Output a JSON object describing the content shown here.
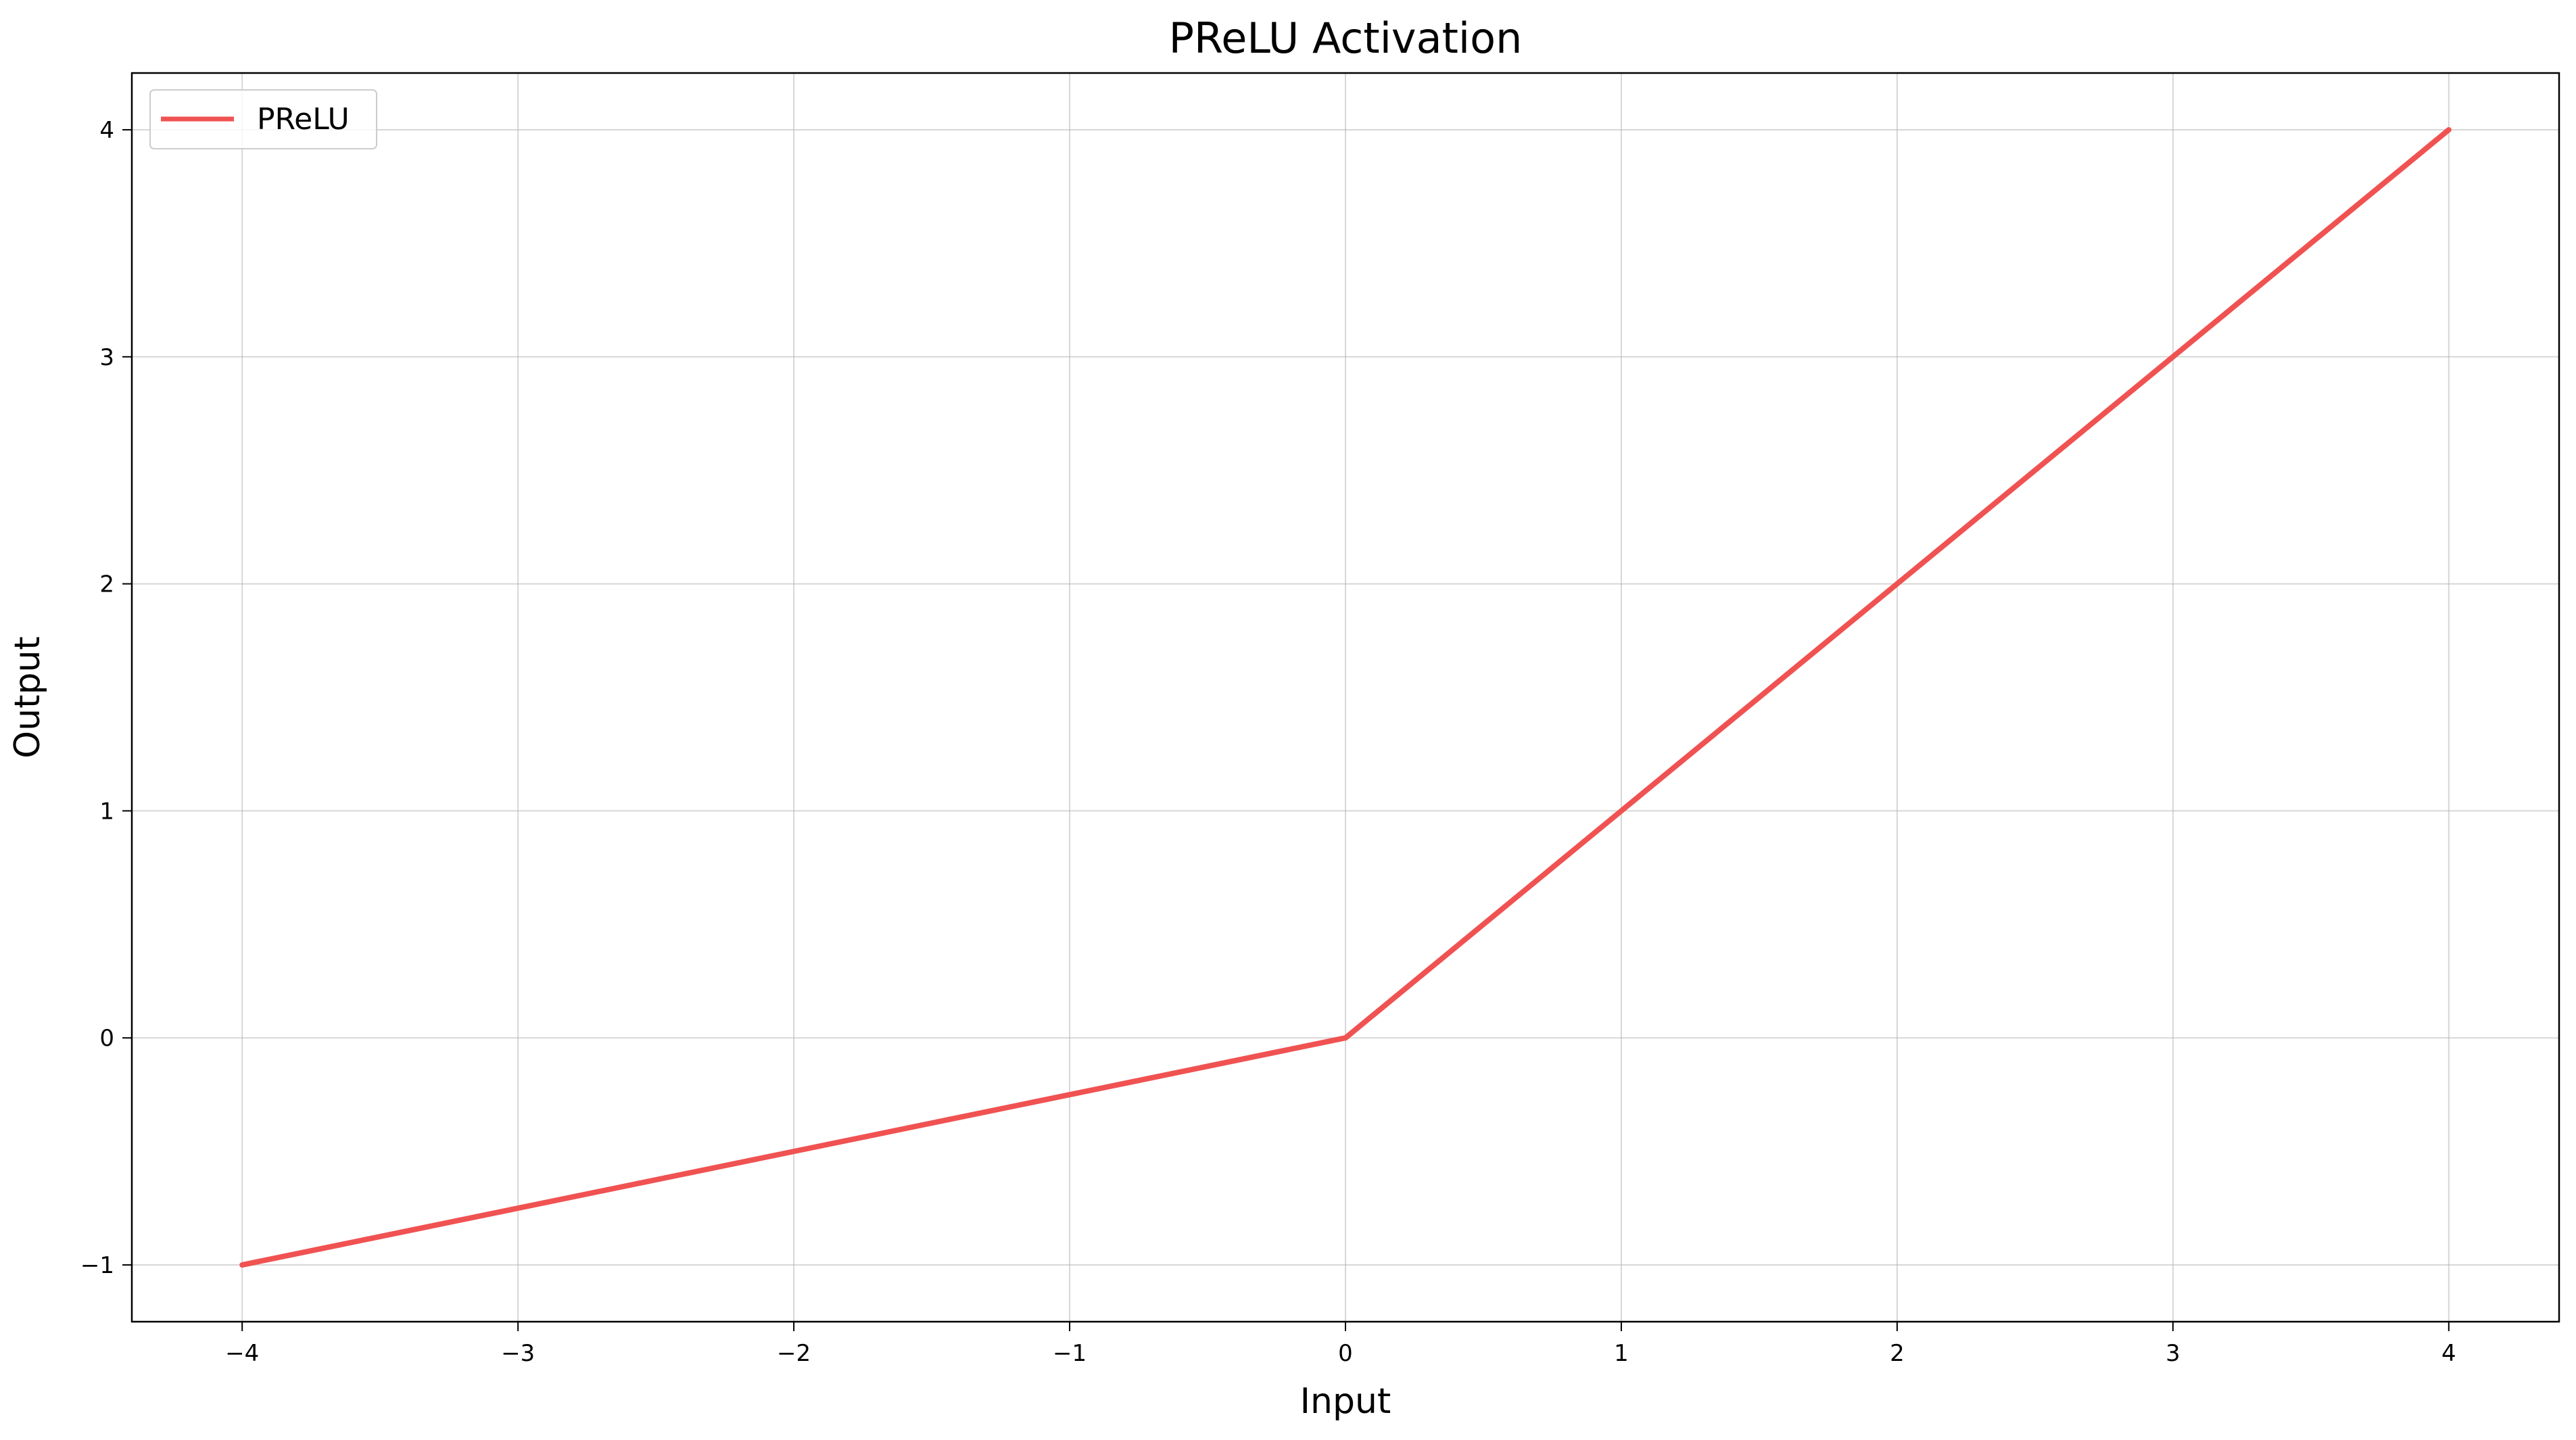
{
  "chart_data": {
    "type": "line",
    "title": "PReLU Activation",
    "xlabel": "Input",
    "ylabel": "Output",
    "xlim": [
      -4.4,
      4.4
    ],
    "ylim": [
      -1.25,
      4.25
    ],
    "xticks": [
      -4,
      -3,
      -2,
      -1,
      0,
      1,
      2,
      3,
      4
    ],
    "yticks": [
      -1,
      0,
      1,
      2,
      3,
      4
    ],
    "xtick_labels": [
      "−4",
      "−3",
      "−2",
      "−1",
      "0",
      "1",
      "2",
      "3",
      "4"
    ],
    "ytick_labels": [
      "−1",
      "0",
      "1",
      "2",
      "3",
      "4"
    ],
    "grid": true,
    "legend": "top-left",
    "series": [
      {
        "name": "PReLU",
        "color": "#f05252",
        "x": [
          -4,
          -3,
          -2,
          -1,
          0,
          1,
          2,
          3,
          4
        ],
        "y": [
          -1,
          -0.75,
          -0.5,
          -0.25,
          0,
          1,
          2,
          3,
          4
        ]
      }
    ]
  }
}
